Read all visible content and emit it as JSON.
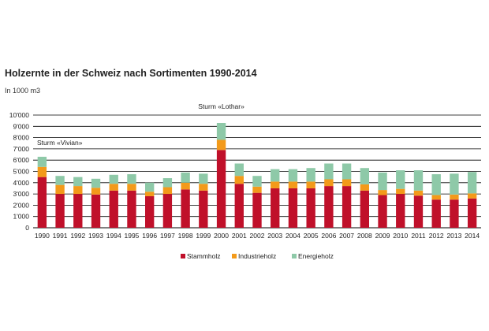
{
  "header": {
    "title": "Holzernte in der Schweiz nach Sortimenten 1990-2014",
    "unit": "In 1000 m3"
  },
  "colors": {
    "stammholz": "#c0102a",
    "industrieholz": "#f39a1a",
    "energieholz": "#8ec9a8",
    "grid": "#000000"
  },
  "chart_data": {
    "type": "bar",
    "stacked": true,
    "title": "Holzernte in der Schweiz nach Sortimenten 1990-2014",
    "ylabel": "In 1000 m3",
    "ylim": [
      0,
      10000
    ],
    "yticks": [
      0,
      1000,
      2000,
      3000,
      4000,
      5000,
      6000,
      7000,
      8000,
      9000,
      10000
    ],
    "ytick_labels": [
      "0",
      "1'000",
      "2'000",
      "3'000",
      "4'000",
      "5'000",
      "6'000",
      "7'000",
      "8'000",
      "9'000",
      "10'000"
    ],
    "grid": true,
    "legend_position": "bottom",
    "categories": [
      "1990",
      "1991",
      "1992",
      "1993",
      "1994",
      "1995",
      "1996",
      "1997",
      "1998",
      "1999",
      "2000",
      "2001",
      "2002",
      "2003",
      "2004",
      "2005",
      "2006",
      "2007",
      "2008",
      "2009",
      "2010",
      "2011",
      "2012",
      "2013",
      "2014"
    ],
    "series": [
      {
        "name": "Stammholz",
        "color": "#c0102a",
        "values": [
          4500,
          3000,
          3000,
          2950,
          3300,
          3300,
          2800,
          3000,
          3400,
          3300,
          6900,
          3900,
          3100,
          3500,
          3500,
          3500,
          3700,
          3700,
          3300,
          2900,
          3000,
          2850,
          2500,
          2500,
          2600
        ]
      },
      {
        "name": "Industrieholz",
        "color": "#f39a1a",
        "values": [
          900,
          800,
          700,
          600,
          600,
          600,
          400,
          600,
          600,
          600,
          900,
          700,
          550,
          600,
          600,
          600,
          600,
          600,
          550,
          450,
          450,
          450,
          400,
          450,
          450
        ]
      },
      {
        "name": "Energieholz",
        "color": "#8ec9a8",
        "values": [
          900,
          800,
          800,
          800,
          800,
          850,
          800,
          800,
          900,
          900,
          1500,
          1100,
          950,
          1100,
          1100,
          1200,
          1400,
          1400,
          1450,
          1550,
          1650,
          1800,
          1850,
          1850,
          1900
        ]
      }
    ],
    "annotations": [
      {
        "text": "Sturm «Vivian»",
        "x": "1990"
      },
      {
        "text": "Sturm «Lothar»",
        "x": "2000"
      }
    ]
  }
}
